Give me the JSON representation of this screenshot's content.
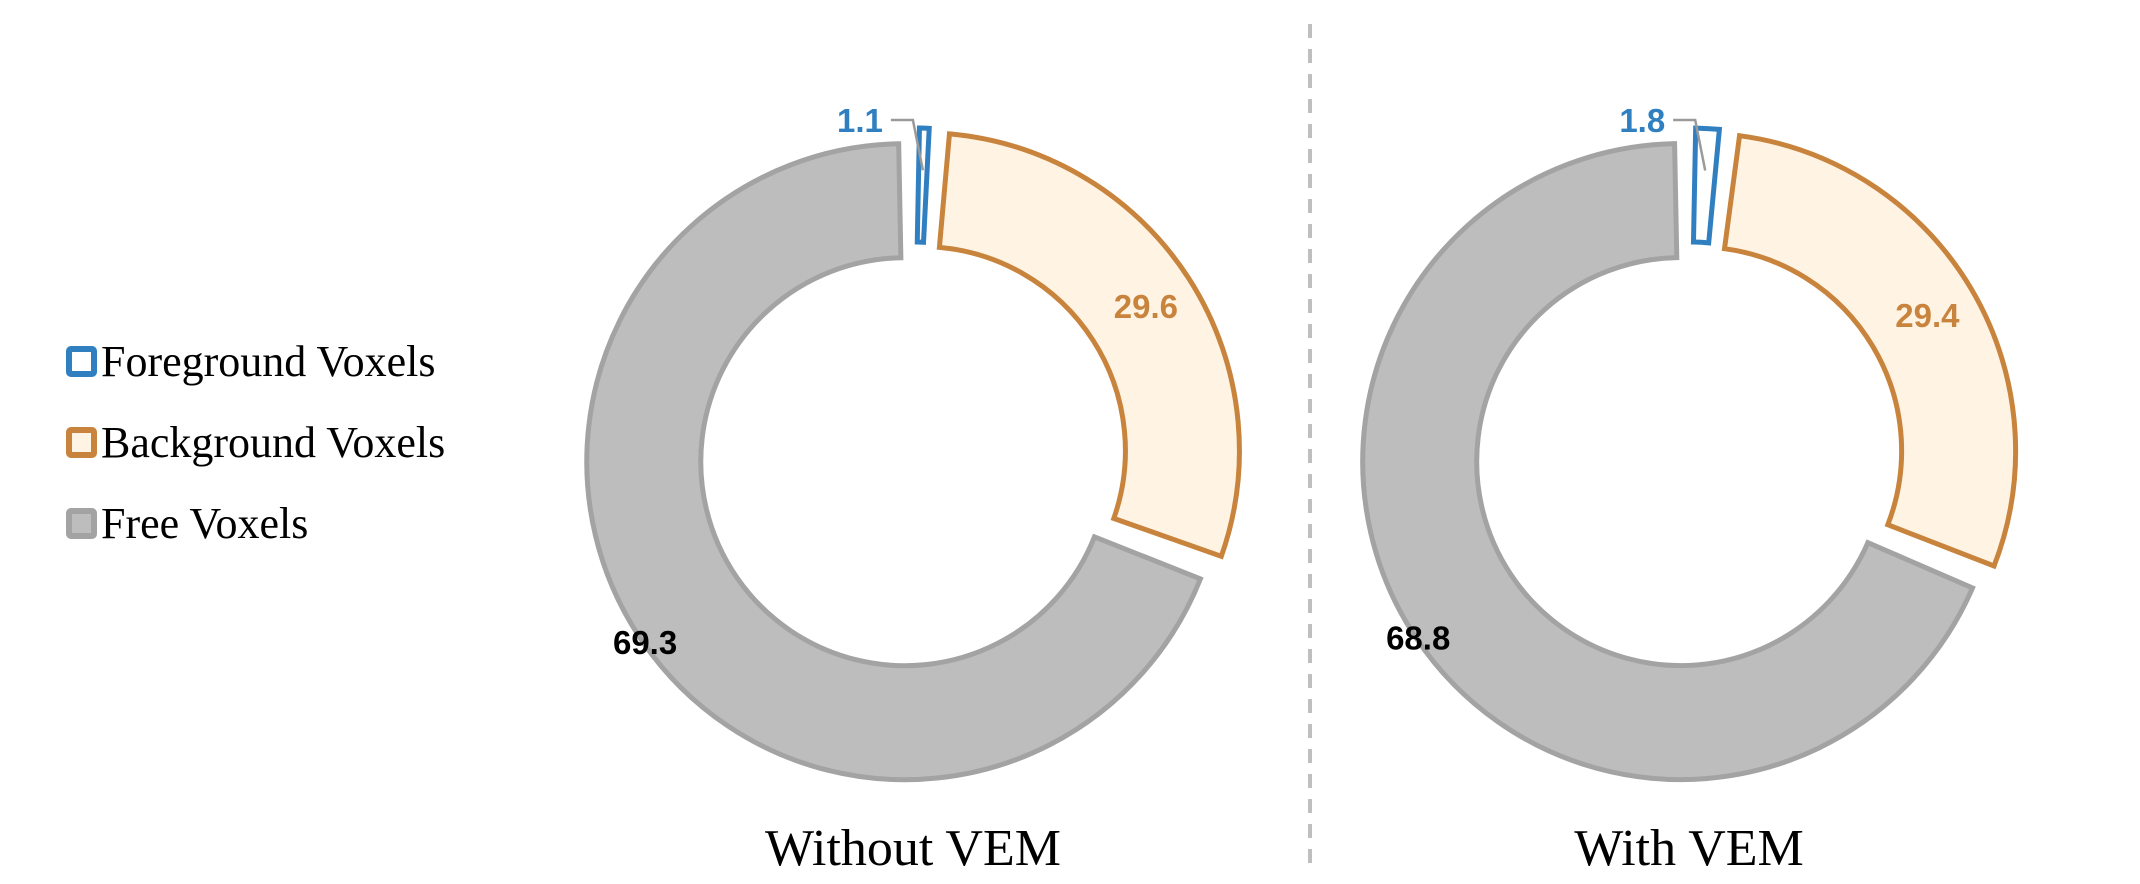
{
  "legend": {
    "items": [
      {
        "label": "Foreground Voxels",
        "stroke": "#2f7fc1",
        "fill": "#ffffff"
      },
      {
        "label": "Background Voxels",
        "stroke": "#c8843c",
        "fill": "#fff3e4"
      },
      {
        "label": "Free Voxels",
        "stroke": "#a3a3a3",
        "fill": "#bdbdbd"
      }
    ]
  },
  "colors": {
    "foreground_stroke": "#2f7fc1",
    "foreground_fill": "#ffffff",
    "background_stroke": "#c8843c",
    "background_fill": "#fff3e4",
    "free_stroke": "#a3a3a3",
    "free_fill": "#bdbdbd",
    "divider": "#bfbfbf",
    "free_label": "#000000"
  },
  "chart_data": [
    {
      "type": "pie",
      "style": "donut",
      "caption": "Without VEM",
      "labels": [
        "Foreground Voxels",
        "Background Voxels",
        "Free Voxels"
      ],
      "values": [
        1.1,
        29.6,
        69.3
      ],
      "data_labels": [
        "1.1",
        "29.6",
        "69.3"
      ]
    },
    {
      "type": "pie",
      "style": "donut",
      "caption": "With VEM",
      "labels": [
        "Foreground Voxels",
        "Background Voxels",
        "Free Voxels"
      ],
      "values": [
        1.8,
        29.4,
        68.8
      ],
      "data_labels": [
        "1.8",
        "29.4",
        "68.8"
      ]
    }
  ]
}
